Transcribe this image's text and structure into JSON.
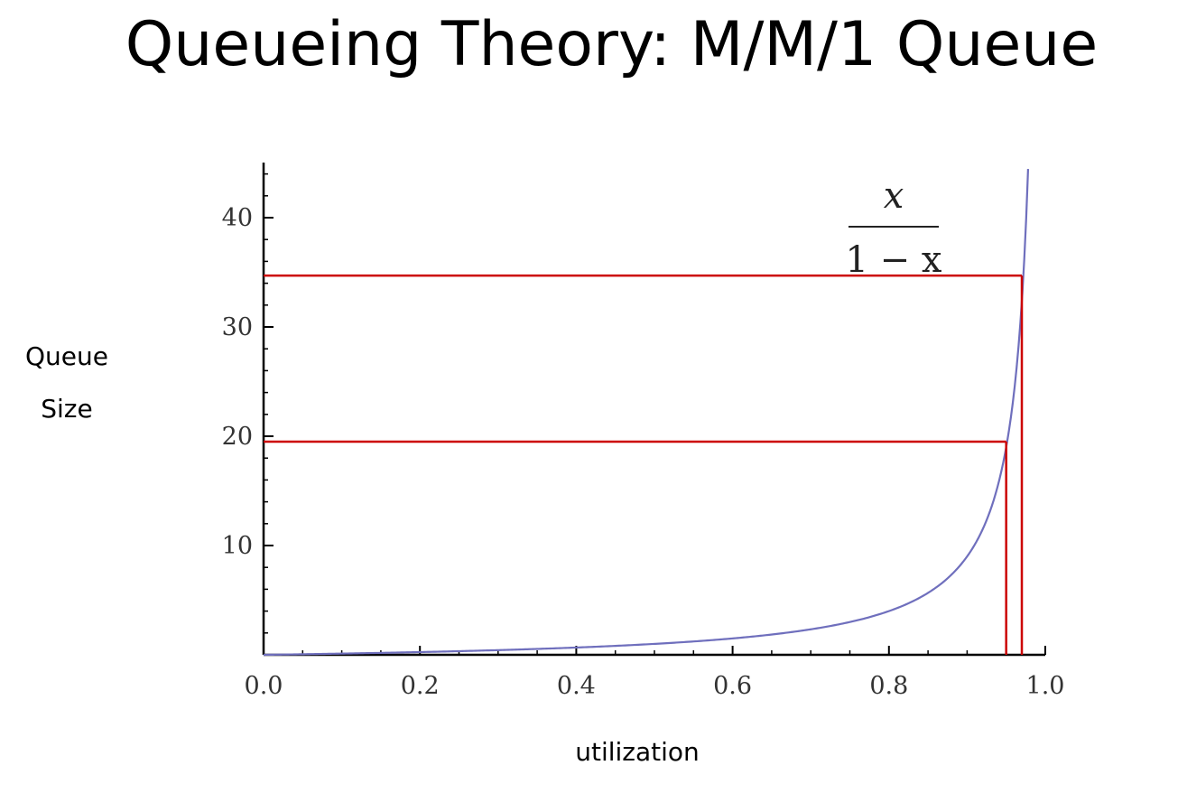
{
  "slide": {
    "title": "Queueing Theory: M/M/1 Queue"
  },
  "chart_data": {
    "type": "line",
    "xlabel": "utilization",
    "ylabel_lines": [
      "Queue",
      "Size"
    ],
    "xlim": [
      0,
      1
    ],
    "ylim": [
      0,
      45
    ],
    "x_ticks": [
      0.0,
      0.2,
      0.4,
      0.6,
      0.8,
      1.0
    ],
    "x_tick_labels": [
      "0.0",
      "0.2",
      "0.4",
      "0.6",
      "0.8",
      "1.0"
    ],
    "y_ticks": [
      10,
      20,
      30,
      40
    ],
    "y_tick_labels": [
      "10",
      "20",
      "30",
      "40"
    ],
    "grid": false,
    "series": [
      {
        "function": "x/(1-x)",
        "color": "#6f6fbd",
        "x": [
          0.0,
          0.1,
          0.2,
          0.3,
          0.4,
          0.5,
          0.6,
          0.7,
          0.8,
          0.85,
          0.9,
          0.92,
          0.94,
          0.95,
          0.96,
          0.97,
          0.975,
          0.978
        ],
        "y": [
          0.0,
          0.11,
          0.25,
          0.43,
          0.67,
          1.0,
          1.5,
          2.33,
          4.0,
          5.67,
          9.0,
          11.5,
          15.67,
          19.0,
          24.0,
          32.3,
          39.0,
          44.5
        ]
      }
    ],
    "annotation": {
      "label": "x/(1-x)",
      "numerator": "x",
      "denominator": "1 − x"
    },
    "reference_lines": [
      {
        "x": 0.95,
        "y": 19.5,
        "color": "#cc0000"
      },
      {
        "x": 0.97,
        "y": 34.7,
        "color": "#cc0000"
      }
    ]
  }
}
